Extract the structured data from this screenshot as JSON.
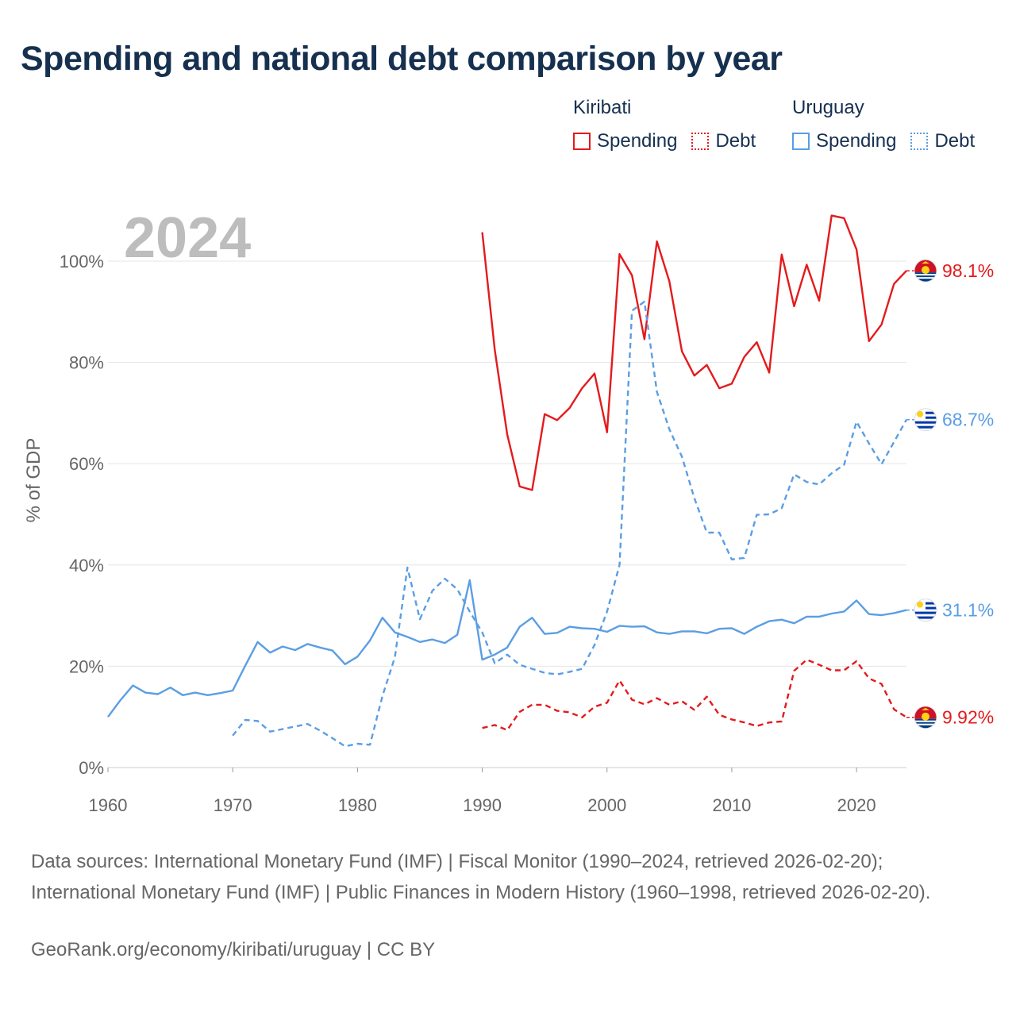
{
  "title": "Spending and national debt comparison by year",
  "legend": {
    "groups": [
      {
        "name": "Kiribati",
        "color": "#e41a1c",
        "items": [
          {
            "label": "Spending",
            "style": "solid"
          },
          {
            "label": "Debt",
            "style": "dotted"
          }
        ]
      },
      {
        "name": "Uruguay",
        "color": "#5b9ee3",
        "items": [
          {
            "label": "Spending",
            "style": "solid"
          },
          {
            "label": "Debt",
            "style": "dotted"
          }
        ]
      }
    ]
  },
  "chart_data": {
    "type": "line",
    "year_label": "2024",
    "ylabel": "% of GDP",
    "xlabel": "",
    "xlim": [
      1960,
      2024
    ],
    "ylim": [
      0,
      115
    ],
    "x_ticks": [
      1960,
      1970,
      1980,
      1990,
      2000,
      2010,
      2020
    ],
    "y_ticks": [
      0,
      20,
      40,
      60,
      80,
      100
    ],
    "y_tick_labels": [
      "0%",
      "20%",
      "40%",
      "60%",
      "80%",
      "100%"
    ],
    "grid": true,
    "series": [
      {
        "name": "Kiribati Spending",
        "country": "Kiribati",
        "measure": "Spending",
        "color": "#e41a1c",
        "dash": "solid",
        "end_label": "98.1%",
        "end_value": 98.1,
        "start_year": 1990,
        "values": [
          105.7,
          82.5,
          65.8,
          55.5,
          54.8,
          69.8,
          68.6,
          71.0,
          74.9,
          77.8,
          66.2,
          101.4,
          97.2,
          84.6,
          103.9,
          96.0,
          82.2,
          77.4,
          79.5,
          74.9,
          75.8,
          81.1,
          84.0,
          78.0,
          101.3,
          91.1,
          99.3,
          92.2,
          109.0,
          108.5,
          102.3,
          84.2,
          87.5,
          95.5,
          98.1
        ]
      },
      {
        "name": "Kiribati Debt",
        "country": "Kiribati",
        "measure": "Debt",
        "color": "#e41a1c",
        "dash": "dashed",
        "end_label": "9.92%",
        "end_value": 9.92,
        "start_year": 1990,
        "values": [
          7.8,
          8.4,
          7.4,
          11.0,
          12.4,
          12.4,
          11.2,
          10.9,
          9.9,
          12.0,
          12.8,
          17.2,
          13.4,
          12.5,
          13.7,
          12.4,
          13.1,
          11.4,
          14.0,
          10.4,
          9.5,
          8.9,
          8.2,
          8.9,
          9.1,
          19.1,
          21.3,
          20.3,
          19.2,
          19.2,
          21.0,
          17.6,
          16.5,
          11.5,
          9.92
        ]
      },
      {
        "name": "Uruguay Spending",
        "country": "Uruguay",
        "measure": "Spending",
        "color": "#5b9ee3",
        "dash": "solid",
        "end_label": "31.1%",
        "end_value": 31.1,
        "start_year": 1960,
        "values": [
          10.0,
          13.3,
          16.2,
          14.8,
          14.5,
          15.8,
          14.3,
          14.8,
          14.3,
          14.7,
          15.2,
          20.1,
          24.8,
          22.7,
          23.9,
          23.2,
          24.4,
          23.7,
          23.1,
          20.4,
          21.9,
          25.1,
          29.6,
          26.7,
          25.8,
          24.8,
          25.3,
          24.6,
          26.2,
          37.0,
          21.3,
          22.3,
          23.7,
          27.8,
          29.6,
          26.4,
          26.6,
          27.8,
          27.5,
          27.4,
          26.8,
          28.0,
          27.8,
          27.9,
          26.7,
          26.4,
          26.9,
          26.9,
          26.5,
          27.4,
          27.5,
          26.4,
          27.8,
          28.9,
          29.2,
          28.5,
          29.8,
          29.8,
          30.4,
          30.8,
          33.0,
          30.3,
          30.1,
          30.5,
          31.1
        ]
      },
      {
        "name": "Uruguay Debt",
        "country": "Uruguay",
        "measure": "Debt",
        "color": "#5b9ee3",
        "dash": "dashed",
        "end_label": "68.7%",
        "end_value": 68.7,
        "start_year": 1970,
        "values": [
          6.3,
          9.4,
          9.2,
          7.1,
          7.6,
          8.1,
          8.6,
          7.3,
          5.8,
          4.2,
          4.7,
          4.5,
          14.1,
          21.8,
          39.5,
          29.3,
          34.9,
          37.3,
          35.2,
          30.8,
          26.7,
          20.6,
          22.3,
          20.3,
          19.5,
          18.7,
          18.4,
          18.9,
          19.5,
          24.2,
          30.8,
          40.0,
          90.2,
          92.0,
          74.2,
          66.8,
          61.4,
          53.2,
          46.4,
          46.4,
          41.1,
          41.4,
          49.9,
          50.0,
          51.2,
          57.9,
          56.4,
          55.9,
          58.1,
          59.8,
          68.3,
          64.0,
          59.9,
          64.3,
          68.7
        ]
      }
    ]
  },
  "sources": "Data sources: International Monetary Fund (IMF) | Fiscal Monitor (1990–2024, retrieved 2026-02-20); International Monetary Fund (IMF) | Public Finances in Modern History (1960–1998, retrieved 2026-02-20).",
  "credit": "GeoRank.org/economy/kiribati/uruguay | CC BY"
}
